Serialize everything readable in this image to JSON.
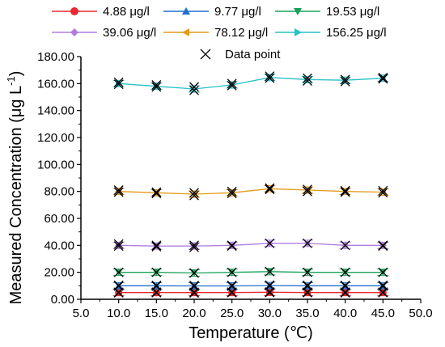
{
  "chart_data": {
    "type": "line",
    "xlabel": "Temperature (℃)",
    "ylabel": "Measured Concentration (μg L",
    "ylabel_sup": "-1",
    "ylabel_close": ")",
    "xlim": [
      5.0,
      50.0
    ],
    "ylim": [
      0,
      180
    ],
    "x_ticks": [
      "5.0",
      "10.0",
      "15.0",
      "20.0",
      "25.0",
      "30.0",
      "35.0",
      "40.0",
      "45.0",
      "50.0"
    ],
    "y_ticks": [
      "0.00",
      "20.00",
      "40.00",
      "60.00",
      "80.00",
      "100.00",
      "120.00",
      "140.00",
      "160.00",
      "180.00"
    ],
    "grid": false,
    "legend_position": "top",
    "x": [
      10,
      15,
      20,
      25,
      30,
      35,
      40,
      45
    ],
    "series": [
      {
        "name": "4.88 μg/l",
        "color": "#e8282d",
        "marker": "circle",
        "values": [
          5.0,
          5.0,
          5.0,
          5.0,
          5.2,
          5.0,
          5.0,
          5.0
        ]
      },
      {
        "name": "9.77 μg/l",
        "color": "#1f6fd1",
        "marker": "triangle-up",
        "values": [
          10.0,
          10.0,
          9.9,
          9.9,
          10.2,
          10.0,
          10.0,
          10.0
        ]
      },
      {
        "name": "19.53 μg/l",
        "color": "#1aa05a",
        "marker": "triangle-down",
        "values": [
          20.0,
          20.0,
          19.5,
          20.0,
          20.5,
          20.0,
          20.0,
          20.0
        ]
      },
      {
        "name": "39.06 μg/l",
        "color": "#b07ee0",
        "marker": "diamond",
        "values": [
          40.0,
          39.5,
          39.5,
          40.0,
          41.5,
          41.5,
          40.0,
          40.0
        ]
      },
      {
        "name": "78.12 μg/l",
        "color": "#e39a1c",
        "marker": "triangle-left",
        "values": [
          80.0,
          79.0,
          78.0,
          79.0,
          82.0,
          81.0,
          80.0,
          79.5
        ]
      },
      {
        "name": "156.25 μg/l",
        "color": "#27c0c9",
        "marker": "triangle-right",
        "values": [
          160.0,
          158.0,
          156.0,
          159.0,
          164.5,
          163.0,
          162.5,
          164.0
        ]
      }
    ],
    "data_point_label": "Data point",
    "data_points": [
      [
        10,
        4.8
      ],
      [
        10,
        5.2
      ],
      [
        15,
        4.9
      ],
      [
        15,
        5.3
      ],
      [
        20,
        4.7
      ],
      [
        20,
        5.2
      ],
      [
        25,
        4.9
      ],
      [
        25,
        5.3
      ],
      [
        30,
        5.0
      ],
      [
        30,
        5.4
      ],
      [
        35,
        4.9
      ],
      [
        35,
        5.3
      ],
      [
        40,
        4.8
      ],
      [
        40,
        5.3
      ],
      [
        45,
        4.9
      ],
      [
        45,
        5.3
      ],
      [
        10,
        9.8
      ],
      [
        10,
        10.4
      ],
      [
        15,
        9.7
      ],
      [
        15,
        10.3
      ],
      [
        20,
        9.6
      ],
      [
        20,
        10.2
      ],
      [
        25,
        9.7
      ],
      [
        25,
        10.3
      ],
      [
        30,
        10.0
      ],
      [
        30,
        10.5
      ],
      [
        35,
        9.8
      ],
      [
        35,
        10.4
      ],
      [
        40,
        9.8
      ],
      [
        40,
        10.3
      ],
      [
        45,
        9.7
      ],
      [
        45,
        10.4
      ],
      [
        10,
        20.0
      ],
      [
        15,
        20.0
      ],
      [
        20,
        19.5
      ],
      [
        25,
        20.0
      ],
      [
        30,
        20.5
      ],
      [
        35,
        20.0
      ],
      [
        40,
        20.0
      ],
      [
        45,
        20.0
      ],
      [
        10,
        39.5
      ],
      [
        10,
        41.0
      ],
      [
        15,
        39.0
      ],
      [
        15,
        40.0
      ],
      [
        20,
        38.5
      ],
      [
        20,
        40.0
      ],
      [
        25,
        39.5
      ],
      [
        25,
        40.0
      ],
      [
        30,
        41.5
      ],
      [
        35,
        41.5
      ],
      [
        40,
        40.0
      ],
      [
        45,
        39.5
      ],
      [
        45,
        40.0
      ],
      [
        10,
        79.5
      ],
      [
        10,
        81.0
      ],
      [
        15,
        78.5
      ],
      [
        15,
        79.5
      ],
      [
        20,
        77.0
      ],
      [
        20,
        79.0
      ],
      [
        25,
        78.5
      ],
      [
        25,
        80.0
      ],
      [
        30,
        81.5
      ],
      [
        30,
        82.5
      ],
      [
        35,
        80.0
      ],
      [
        35,
        81.5
      ],
      [
        40,
        79.5
      ],
      [
        40,
        80.5
      ],
      [
        45,
        79.0
      ],
      [
        45,
        80.5
      ],
      [
        10,
        159.5
      ],
      [
        10,
        161.0
      ],
      [
        15,
        157.5
      ],
      [
        15,
        159.0
      ],
      [
        20,
        155.0
      ],
      [
        20,
        157.5
      ],
      [
        25,
        158.5
      ],
      [
        25,
        160.0
      ],
      [
        30,
        164.0
      ],
      [
        30,
        165.5
      ],
      [
        35,
        162.0
      ],
      [
        35,
        164.0
      ],
      [
        40,
        161.5
      ],
      [
        40,
        163.0
      ],
      [
        45,
        163.5
      ],
      [
        45,
        164.5
      ]
    ]
  }
}
